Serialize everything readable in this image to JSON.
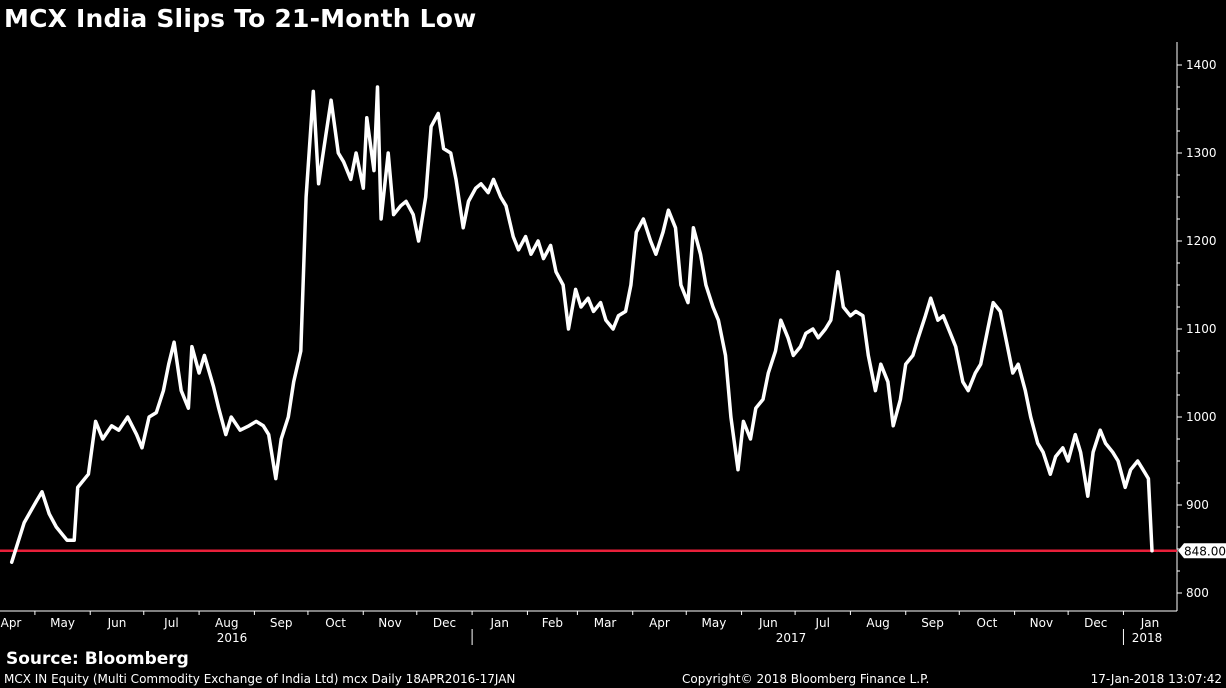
{
  "chart_data": {
    "type": "line",
    "title": "MCX India Slips To 21-Month Low",
    "ylim": [
      770,
      1430
    ],
    "y_ticks": [
      800,
      900,
      1000,
      1100,
      1200,
      1300,
      1400
    ],
    "month_labels": [
      "Apr",
      "May",
      "Jun",
      "Jul",
      "Aug",
      "Sep",
      "Oct",
      "Nov",
      "Dec",
      "Jan",
      "Feb",
      "Mar",
      "Apr",
      "May",
      "Jun",
      "Jul",
      "Aug",
      "Sep",
      "Oct",
      "Nov",
      "Dec",
      "Jan"
    ],
    "year_labels": [
      "2016",
      "2017",
      "2018"
    ],
    "reference_line": {
      "value": 848,
      "label": "848.00",
      "color": "#e8203a"
    },
    "line_color": "#ffffff",
    "grid": false,
    "series": [
      {
        "points": [
          [
            "2016-04-18",
            835
          ],
          [
            "2016-04-25",
            880
          ],
          [
            "2016-05-02",
            905
          ],
          [
            "2016-05-05",
            915
          ],
          [
            "2016-05-09",
            890
          ],
          [
            "2016-05-13",
            875
          ],
          [
            "2016-05-19",
            860
          ],
          [
            "2016-05-23",
            860
          ],
          [
            "2016-05-25",
            920
          ],
          [
            "2016-05-31",
            935
          ],
          [
            "2016-06-04",
            995
          ],
          [
            "2016-06-08",
            975
          ],
          [
            "2016-06-13",
            990
          ],
          [
            "2016-06-17",
            985
          ],
          [
            "2016-06-22",
            1000
          ],
          [
            "2016-06-27",
            980
          ],
          [
            "2016-06-30",
            965
          ],
          [
            "2016-07-04",
            1000
          ],
          [
            "2016-07-08",
            1005
          ],
          [
            "2016-07-12",
            1030
          ],
          [
            "2016-07-15",
            1060
          ],
          [
            "2016-07-18",
            1085
          ],
          [
            "2016-07-22",
            1030
          ],
          [
            "2016-07-26",
            1010
          ],
          [
            "2016-07-28",
            1080
          ],
          [
            "2016-08-01",
            1050
          ],
          [
            "2016-08-04",
            1070
          ],
          [
            "2016-08-09",
            1035
          ],
          [
            "2016-08-12",
            1010
          ],
          [
            "2016-08-16",
            980
          ],
          [
            "2016-08-19",
            1000
          ],
          [
            "2016-08-24",
            985
          ],
          [
            "2016-08-29",
            990
          ],
          [
            "2016-09-02",
            995
          ],
          [
            "2016-09-06",
            990
          ],
          [
            "2016-09-09",
            980
          ],
          [
            "2016-09-13",
            930
          ],
          [
            "2016-09-16",
            975
          ],
          [
            "2016-09-20",
            1000
          ],
          [
            "2016-09-23",
            1040
          ],
          [
            "2016-09-27",
            1075
          ],
          [
            "2016-09-30",
            1250
          ],
          [
            "2016-10-04",
            1370
          ],
          [
            "2016-10-07",
            1265
          ],
          [
            "2016-10-11",
            1320
          ],
          [
            "2016-10-14",
            1360
          ],
          [
            "2016-10-18",
            1300
          ],
          [
            "2016-10-21",
            1290
          ],
          [
            "2016-10-25",
            1270
          ],
          [
            "2016-10-28",
            1300
          ],
          [
            "2016-11-01",
            1260
          ],
          [
            "2016-11-03",
            1340
          ],
          [
            "2016-11-07",
            1280
          ],
          [
            "2016-11-09",
            1375
          ],
          [
            "2016-11-11",
            1225
          ],
          [
            "2016-11-15",
            1300
          ],
          [
            "2016-11-18",
            1230
          ],
          [
            "2016-11-22",
            1240
          ],
          [
            "2016-11-25",
            1245
          ],
          [
            "2016-11-29",
            1230
          ],
          [
            "2016-12-02",
            1200
          ],
          [
            "2016-12-06",
            1250
          ],
          [
            "2016-12-09",
            1330
          ],
          [
            "2016-12-13",
            1345
          ],
          [
            "2016-12-16",
            1305
          ],
          [
            "2016-12-20",
            1300
          ],
          [
            "2016-12-23",
            1270
          ],
          [
            "2016-12-27",
            1215
          ],
          [
            "2016-12-30",
            1245
          ],
          [
            "2017-01-03",
            1260
          ],
          [
            "2017-01-06",
            1265
          ],
          [
            "2017-01-10",
            1255
          ],
          [
            "2017-01-13",
            1270
          ],
          [
            "2017-01-17",
            1250
          ],
          [
            "2017-01-20",
            1240
          ],
          [
            "2017-01-24",
            1205
          ],
          [
            "2017-01-27",
            1190
          ],
          [
            "2017-01-31",
            1205
          ],
          [
            "2017-02-03",
            1185
          ],
          [
            "2017-02-07",
            1200
          ],
          [
            "2017-02-10",
            1180
          ],
          [
            "2017-02-14",
            1195
          ],
          [
            "2017-02-17",
            1165
          ],
          [
            "2017-02-21",
            1150
          ],
          [
            "2017-02-24",
            1100
          ],
          [
            "2017-02-28",
            1145
          ],
          [
            "2017-03-03",
            1125
          ],
          [
            "2017-03-07",
            1135
          ],
          [
            "2017-03-10",
            1120
          ],
          [
            "2017-03-14",
            1130
          ],
          [
            "2017-03-17",
            1110
          ],
          [
            "2017-03-21",
            1100
          ],
          [
            "2017-03-24",
            1115
          ],
          [
            "2017-03-28",
            1120
          ],
          [
            "2017-03-31",
            1150
          ],
          [
            "2017-04-03",
            1210
          ],
          [
            "2017-04-07",
            1225
          ],
          [
            "2017-04-11",
            1200
          ],
          [
            "2017-04-14",
            1185
          ],
          [
            "2017-04-18",
            1210
          ],
          [
            "2017-04-21",
            1235
          ],
          [
            "2017-04-25",
            1215
          ],
          [
            "2017-04-28",
            1150
          ],
          [
            "2017-05-02",
            1130
          ],
          [
            "2017-05-05",
            1215
          ],
          [
            "2017-05-09",
            1185
          ],
          [
            "2017-05-12",
            1150
          ],
          [
            "2017-05-16",
            1125
          ],
          [
            "2017-05-19",
            1110
          ],
          [
            "2017-05-23",
            1070
          ],
          [
            "2017-05-26",
            1000
          ],
          [
            "2017-05-30",
            940
          ],
          [
            "2017-06-02",
            995
          ],
          [
            "2017-06-06",
            975
          ],
          [
            "2017-06-09",
            1010
          ],
          [
            "2017-06-13",
            1020
          ],
          [
            "2017-06-16",
            1050
          ],
          [
            "2017-06-20",
            1075
          ],
          [
            "2017-06-23",
            1110
          ],
          [
            "2017-06-27",
            1090
          ],
          [
            "2017-06-30",
            1070
          ],
          [
            "2017-07-04",
            1080
          ],
          [
            "2017-07-07",
            1095
          ],
          [
            "2017-07-11",
            1100
          ],
          [
            "2017-07-14",
            1090
          ],
          [
            "2017-07-18",
            1100
          ],
          [
            "2017-07-21",
            1110
          ],
          [
            "2017-07-25",
            1165
          ],
          [
            "2017-07-28",
            1125
          ],
          [
            "2017-08-01",
            1115
          ],
          [
            "2017-08-04",
            1120
          ],
          [
            "2017-08-08",
            1115
          ],
          [
            "2017-08-11",
            1070
          ],
          [
            "2017-08-15",
            1030
          ],
          [
            "2017-08-18",
            1060
          ],
          [
            "2017-08-22",
            1040
          ],
          [
            "2017-08-25",
            990
          ],
          [
            "2017-08-29",
            1020
          ],
          [
            "2017-09-01",
            1060
          ],
          [
            "2017-09-05",
            1070
          ],
          [
            "2017-09-08",
            1090
          ],
          [
            "2017-09-12",
            1115
          ],
          [
            "2017-09-15",
            1135
          ],
          [
            "2017-09-19",
            1110
          ],
          [
            "2017-09-22",
            1115
          ],
          [
            "2017-09-26",
            1095
          ],
          [
            "2017-09-29",
            1080
          ],
          [
            "2017-10-03",
            1040
          ],
          [
            "2017-10-06",
            1030
          ],
          [
            "2017-10-10",
            1050
          ],
          [
            "2017-10-13",
            1060
          ],
          [
            "2017-10-17",
            1100
          ],
          [
            "2017-10-20",
            1130
          ],
          [
            "2017-10-24",
            1120
          ],
          [
            "2017-10-27",
            1090
          ],
          [
            "2017-10-31",
            1050
          ],
          [
            "2017-11-03",
            1060
          ],
          [
            "2017-11-07",
            1030
          ],
          [
            "2017-11-10",
            1000
          ],
          [
            "2017-11-14",
            970
          ],
          [
            "2017-11-17",
            960
          ],
          [
            "2017-11-21",
            935
          ],
          [
            "2017-11-24",
            955
          ],
          [
            "2017-11-28",
            965
          ],
          [
            "2017-12-01",
            950
          ],
          [
            "2017-12-05",
            980
          ],
          [
            "2017-12-08",
            960
          ],
          [
            "2017-12-12",
            910
          ],
          [
            "2017-12-15",
            960
          ],
          [
            "2017-12-19",
            985
          ],
          [
            "2017-12-22",
            970
          ],
          [
            "2017-12-26",
            960
          ],
          [
            "2017-12-29",
            950
          ],
          [
            "2018-01-02",
            920
          ],
          [
            "2018-01-05",
            940
          ],
          [
            "2018-01-09",
            950
          ],
          [
            "2018-01-12",
            940
          ],
          [
            "2018-01-15",
            930
          ],
          [
            "2018-01-17",
            848
          ]
        ]
      }
    ]
  },
  "source": "Source: Bloomberg",
  "footer": {
    "description": "MCX IN Equity (Multi Commodity Exchange of India Ltd) mcx  Daily 18APR2016-17JAN",
    "copyright": "Copyright© 2018 Bloomberg Finance L.P.",
    "timestamp": "17-Jan-2018 13:07:42"
  }
}
